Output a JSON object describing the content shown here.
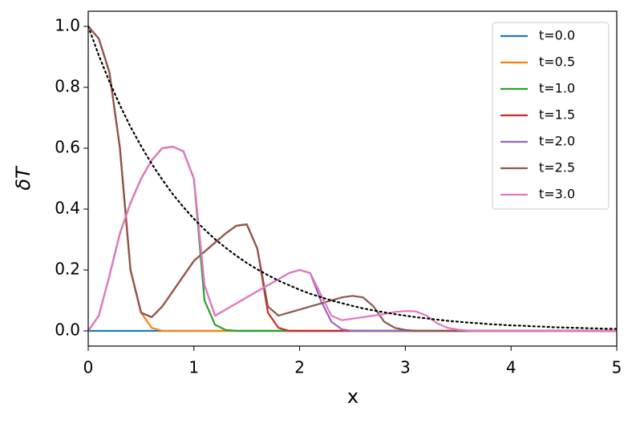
{
  "chart_data": {
    "type": "line",
    "xlabel": "x",
    "ylabel": "δT",
    "xlim": [
      0,
      5
    ],
    "ylim": [
      -0.05,
      1.05
    ],
    "xticks": [
      0,
      1,
      2,
      3,
      4,
      5
    ],
    "yticks": [
      {
        "value": 0,
        "label": "0.0"
      },
      0.2,
      0.4,
      0.6,
      0.8,
      {
        "value": 1,
        "label": "1.0"
      }
    ],
    "grid": false,
    "legend": "upper right",
    "x": [
      0,
      0.1,
      0.2,
      0.3,
      0.4,
      0.5,
      0.6,
      0.7,
      0.8,
      0.9,
      1,
      1.1,
      1.2,
      1.3,
      1.4,
      1.5,
      1.6,
      1.7,
      1.8,
      1.9,
      2,
      2.1,
      2.2,
      2.3,
      2.4,
      2.5,
      2.6,
      2.7,
      2.8,
      2.9,
      3,
      3.1,
      3.2,
      3.3,
      3.4,
      3.5,
      3.6,
      3.7,
      3.8,
      3.9,
      4,
      4.1,
      4.2,
      4.3,
      4.4,
      4.5,
      4.6,
      4.7,
      4.8,
      4.9,
      5
    ],
    "series": [
      {
        "name": "t=0.0",
        "color": "#1f77b4",
        "values": [
          0,
          0,
          0,
          0,
          0,
          0,
          0,
          0,
          0,
          0,
          0,
          0,
          0,
          0,
          0,
          0,
          0,
          0,
          0,
          0,
          0,
          0,
          0,
          0,
          0,
          0,
          0,
          0,
          0,
          0,
          0,
          0,
          0,
          0,
          0,
          0,
          0,
          0,
          0,
          0,
          0,
          0,
          0,
          0,
          0,
          0,
          0,
          0,
          0,
          0,
          0
        ]
      },
      {
        "name": "t=0.5",
        "color": "#ff7f0e",
        "values": [
          1,
          0.96,
          0.85,
          0.6,
          0.2,
          0.06,
          0.01,
          0,
          0,
          0,
          0,
          0,
          0,
          0,
          0,
          0,
          0,
          0,
          0,
          0,
          0,
          0,
          0,
          0,
          0,
          0,
          0,
          0,
          0,
          0,
          0,
          0,
          0,
          0,
          0,
          0,
          0,
          0,
          0,
          0,
          0,
          0,
          0,
          0,
          0,
          0,
          0,
          0,
          0,
          0,
          0
        ]
      },
      {
        "name": "t=1.0",
        "color": "#2ca02c",
        "values": [
          0,
          0.05,
          0.18,
          0.32,
          0.42,
          0.5,
          0.56,
          0.6,
          0.605,
          0.59,
          0.5,
          0.1,
          0.02,
          0.003,
          0,
          0,
          0,
          0,
          0,
          0,
          0,
          0,
          0,
          0,
          0,
          0,
          0,
          0,
          0,
          0,
          0,
          0,
          0,
          0,
          0,
          0,
          0,
          0,
          0,
          0,
          0,
          0,
          0,
          0,
          0,
          0,
          0,
          0,
          0,
          0,
          0
        ]
      },
      {
        "name": "t=1.5",
        "color": "#d62728",
        "values": [
          1,
          0.96,
          0.85,
          0.6,
          0.2,
          0.06,
          0.045,
          0.08,
          0.13,
          0.18,
          0.23,
          0.26,
          0.29,
          0.32,
          0.345,
          0.35,
          0.27,
          0.06,
          0.01,
          0,
          0,
          0,
          0,
          0,
          0,
          0,
          0,
          0,
          0,
          0,
          0,
          0,
          0,
          0,
          0,
          0,
          0,
          0,
          0,
          0,
          0,
          0,
          0,
          0,
          0,
          0,
          0,
          0,
          0,
          0,
          0
        ]
      },
      {
        "name": "t=2.0",
        "color": "#9467bd",
        "values": [
          0,
          0.05,
          0.18,
          0.32,
          0.42,
          0.5,
          0.56,
          0.6,
          0.605,
          0.59,
          0.5,
          0.15,
          0.05,
          0.07,
          0.09,
          0.11,
          0.13,
          0.15,
          0.17,
          0.19,
          0.2,
          0.19,
          0.1,
          0.03,
          0.005,
          0,
          0,
          0,
          0,
          0,
          0,
          0,
          0,
          0,
          0,
          0,
          0,
          0,
          0,
          0,
          0,
          0,
          0,
          0,
          0,
          0,
          0,
          0,
          0,
          0,
          0
        ]
      },
      {
        "name": "t=2.5",
        "color": "#8c564b",
        "values": [
          1,
          0.96,
          0.85,
          0.6,
          0.2,
          0.06,
          0.045,
          0.08,
          0.13,
          0.18,
          0.23,
          0.26,
          0.29,
          0.32,
          0.345,
          0.35,
          0.27,
          0.08,
          0.05,
          0.06,
          0.07,
          0.08,
          0.09,
          0.1,
          0.11,
          0.115,
          0.11,
          0.08,
          0.03,
          0.01,
          0.003,
          0,
          0,
          0,
          0,
          0,
          0,
          0,
          0,
          0,
          0,
          0,
          0,
          0,
          0,
          0,
          0,
          0,
          0,
          0,
          0
        ]
      },
      {
        "name": "t=3.0",
        "color": "#e377c2",
        "values": [
          0,
          0.05,
          0.18,
          0.32,
          0.42,
          0.5,
          0.56,
          0.6,
          0.605,
          0.59,
          0.5,
          0.15,
          0.05,
          0.07,
          0.09,
          0.11,
          0.13,
          0.15,
          0.17,
          0.19,
          0.2,
          0.19,
          0.12,
          0.05,
          0.035,
          0.04,
          0.045,
          0.05,
          0.055,
          0.062,
          0.065,
          0.064,
          0.05,
          0.025,
          0.01,
          0.004,
          0.001,
          0,
          0,
          0,
          0,
          0,
          0,
          0,
          0,
          0,
          0,
          0,
          0,
          0,
          0
        ]
      },
      {
        "color": "#000000",
        "dash": "dotted",
        "values": [
          1,
          0.905,
          0.819,
          0.741,
          0.67,
          0.607,
          0.549,
          0.497,
          0.449,
          0.407,
          0.368,
          0.333,
          0.301,
          0.273,
          0.247,
          0.223,
          0.202,
          0.183,
          0.165,
          0.15,
          0.135,
          0.122,
          0.111,
          0.1,
          0.091,
          0.082,
          0.074,
          0.067,
          0.061,
          0.055,
          0.05,
          0.045,
          0.041,
          0.037,
          0.033,
          0.03,
          0.027,
          0.025,
          0.022,
          0.02,
          0.018,
          0.017,
          0.015,
          0.014,
          0.012,
          0.011,
          0.01,
          0.009,
          0.008,
          0.007,
          0.0067
        ]
      }
    ]
  }
}
